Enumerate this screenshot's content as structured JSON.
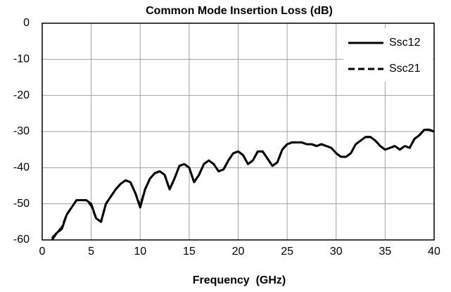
{
  "chart_data": {
    "type": "line",
    "title": "Common Mode Insertion Loss (dB)",
    "x_label": "Frequency  (GHz)",
    "x": [
      1,
      1.5,
      2,
      2.5,
      3,
      3.5,
      4,
      4.5,
      5,
      5.5,
      6,
      6.5,
      7,
      7.5,
      8,
      8.5,
      9,
      9.5,
      10,
      10.5,
      11,
      11.5,
      12,
      12.5,
      13,
      13.5,
      14,
      14.5,
      15,
      15.5,
      16,
      16.5,
      17,
      17.5,
      18,
      18.5,
      19,
      19.5,
      20,
      20.5,
      21,
      21.5,
      22,
      22.5,
      23,
      23.5,
      24,
      24.5,
      25,
      25.5,
      26,
      26.5,
      27,
      27.5,
      28,
      28.5,
      29,
      29.5,
      30,
      30.5,
      31,
      31.5,
      32,
      32.5,
      33,
      33.5,
      34,
      34.5,
      35,
      35.5,
      36,
      36.5,
      37,
      37.5,
      38,
      38.5,
      39,
      39.5,
      40
    ],
    "series": [
      {
        "name": "Ssc12",
        "color": "#000000",
        "line_style": "solid",
        "values": [
          -60,
          -58,
          -57,
          -53,
          -51,
          -49,
          -49,
          -49,
          -50,
          -54,
          -55,
          -50,
          -48,
          -46,
          -44.5,
          -43.5,
          -44,
          -47,
          -51,
          -46,
          -43,
          -41.5,
          -41,
          -42,
          -46,
          -43,
          -39.5,
          -39,
          -40,
          -44,
          -42,
          -39,
          -38,
          -39,
          -41,
          -40.5,
          -38,
          -36,
          -35.5,
          -36.5,
          -39,
          -38,
          -35.5,
          -35.5,
          -37.5,
          -39.5,
          -38.5,
          -35,
          -33.5,
          -33,
          -33,
          -33,
          -33.5,
          -33.5,
          -34,
          -33.5,
          -34,
          -34.5,
          -36,
          -37,
          -37,
          -36,
          -33.5,
          -32.5,
          -31.5,
          -31.5,
          -32.5,
          -34,
          -35,
          -34.5,
          -34,
          -35,
          -34,
          -34.5,
          -32,
          -31,
          -29.5,
          -29.5,
          -30
        ]
      },
      {
        "name": "Ssc21",
        "color": "#000000",
        "line_style": "dashed",
        "values": [
          -59.5,
          -58,
          -56.5,
          -53,
          -51,
          -49,
          -49,
          -49,
          -50.5,
          -54,
          -55,
          -50,
          -48,
          -46,
          -44.5,
          -43.5,
          -44,
          -47,
          -50.5,
          -46,
          -43,
          -41.5,
          -41,
          -42,
          -46,
          -43,
          -39.5,
          -39,
          -40,
          -44,
          -42,
          -39,
          -38,
          -39,
          -41,
          -40.5,
          -38,
          -36,
          -35.5,
          -36.5,
          -39,
          -38,
          -35.5,
          -35.5,
          -37.5,
          -39.5,
          -38.5,
          -35,
          -33.5,
          -33,
          -33,
          -33,
          -33.5,
          -33.5,
          -34,
          -33.5,
          -34,
          -34.5,
          -36,
          -37,
          -37,
          -36,
          -33.5,
          -32.5,
          -31.5,
          -31.5,
          -32.5,
          -34,
          -35,
          -34.5,
          -34,
          -35,
          -34,
          -34.5,
          -32,
          -31,
          -29.5,
          -29.5,
          -30
        ]
      }
    ],
    "xlim": [
      0,
      40
    ],
    "xticks": [
      0,
      5,
      10,
      15,
      20,
      25,
      30,
      35,
      40
    ],
    "ylim": [
      -60,
      0
    ],
    "yticks": [
      0,
      -10,
      -20,
      -30,
      -40,
      -50,
      -60
    ],
    "grid": true,
    "legend": "upper right"
  }
}
